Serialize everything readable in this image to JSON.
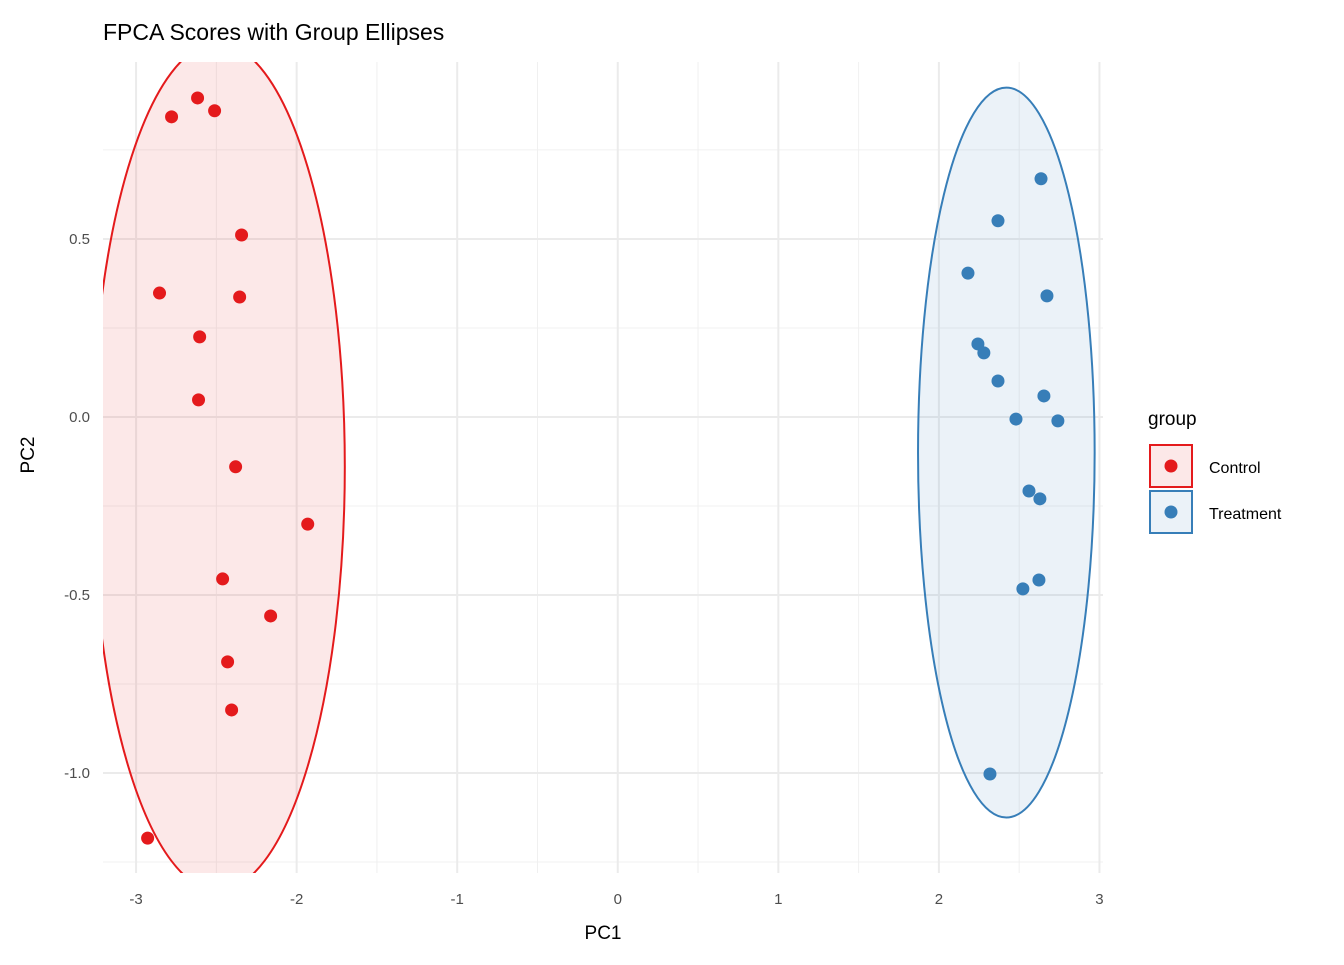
{
  "chart_data": {
    "type": "scatter",
    "title": "FPCA Scores with Group Ellipses",
    "xlabel": "PC1",
    "ylabel": "PC2",
    "xlim": [
      -3.206,
      3.022
    ],
    "ylim": [
      -1.281,
      0.997
    ],
    "x_ticks": [
      -3,
      -2,
      -1,
      0,
      1,
      2,
      3
    ],
    "x_tick_labels": [
      "-3",
      "-2",
      "-1",
      "0",
      "1",
      "2",
      "3"
    ],
    "y_ticks": [
      0.5,
      0.0,
      -0.5,
      -1.0
    ],
    "y_tick_labels": [
      "0.5",
      "0.0",
      "-0.5",
      "-1.0"
    ],
    "grid": true,
    "legend": {
      "title": "group",
      "position": "right"
    },
    "series": [
      {
        "name": "Control",
        "color": "#E41A1C",
        "ellipse": {
          "cx": -2.49,
          "cy": -0.14,
          "rx": 0.79,
          "ry": 1.19
        },
        "points": [
          [
            -2.617,
            0.896
          ],
          [
            -2.779,
            0.843
          ],
          [
            -2.511,
            0.86
          ],
          [
            -2.343,
            0.511
          ],
          [
            -2.854,
            0.348
          ],
          [
            -2.355,
            0.337
          ],
          [
            -2.604,
            0.225
          ],
          [
            -2.611,
            0.048
          ],
          [
            -2.38,
            -0.14
          ],
          [
            -1.931,
            -0.301
          ],
          [
            -2.461,
            -0.455
          ],
          [
            -2.162,
            -0.559
          ],
          [
            -2.43,
            -0.688
          ],
          [
            -2.405,
            -0.823
          ],
          [
            -2.928,
            -1.183
          ]
        ]
      },
      {
        "name": "Treatment",
        "color": "#377EB8",
        "ellipse": {
          "cx": 2.42,
          "cy": -0.1,
          "rx": 0.55,
          "ry": 1.025
        },
        "points": [
          [
            2.636,
            0.669
          ],
          [
            2.368,
            0.551
          ],
          [
            2.181,
            0.404
          ],
          [
            2.673,
            0.34
          ],
          [
            2.243,
            0.205
          ],
          [
            2.28,
            0.18
          ],
          [
            2.368,
            0.101
          ],
          [
            2.654,
            0.059
          ],
          [
            2.48,
            -0.006
          ],
          [
            2.741,
            -0.011
          ],
          [
            2.561,
            -0.208
          ],
          [
            2.629,
            -0.23
          ],
          [
            2.623,
            -0.458
          ],
          [
            2.523,
            -0.483
          ],
          [
            2.318,
            -1.003
          ]
        ]
      }
    ]
  }
}
